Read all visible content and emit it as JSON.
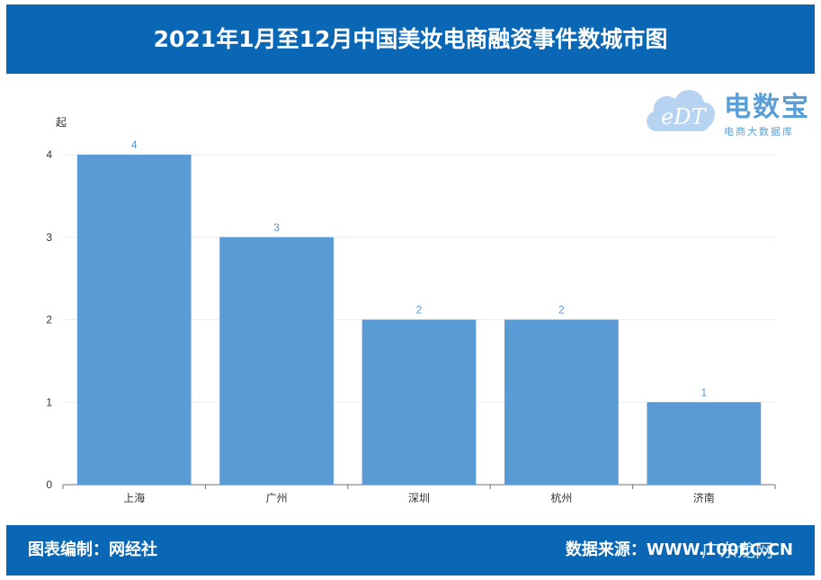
{
  "header": {
    "title": "2021年1月至12月中国美妆电商融资事件数城市图"
  },
  "logo": {
    "name": "电数宝",
    "subtitle": "电商大数据库",
    "mark": "eDT"
  },
  "footer": {
    "left": "图表编制：网经社",
    "right": "数据来源：WWW.100EC.CN"
  },
  "watermark": "广东龙网",
  "colors": {
    "header_bg": "#0a67b5",
    "bar": "#5b9bd5",
    "label": "#5b9bd5"
  },
  "chart_data": {
    "type": "bar",
    "categories": [
      "上海",
      "广州",
      "深圳",
      "杭州",
      "济南"
    ],
    "values": [
      4,
      3,
      2,
      2,
      1
    ],
    "title": "",
    "xlabel": "",
    "ylabel": "起",
    "ylim": [
      0,
      4
    ],
    "yticks": [
      0,
      1,
      2,
      3,
      4
    ],
    "grid": true,
    "data_labels": true
  }
}
